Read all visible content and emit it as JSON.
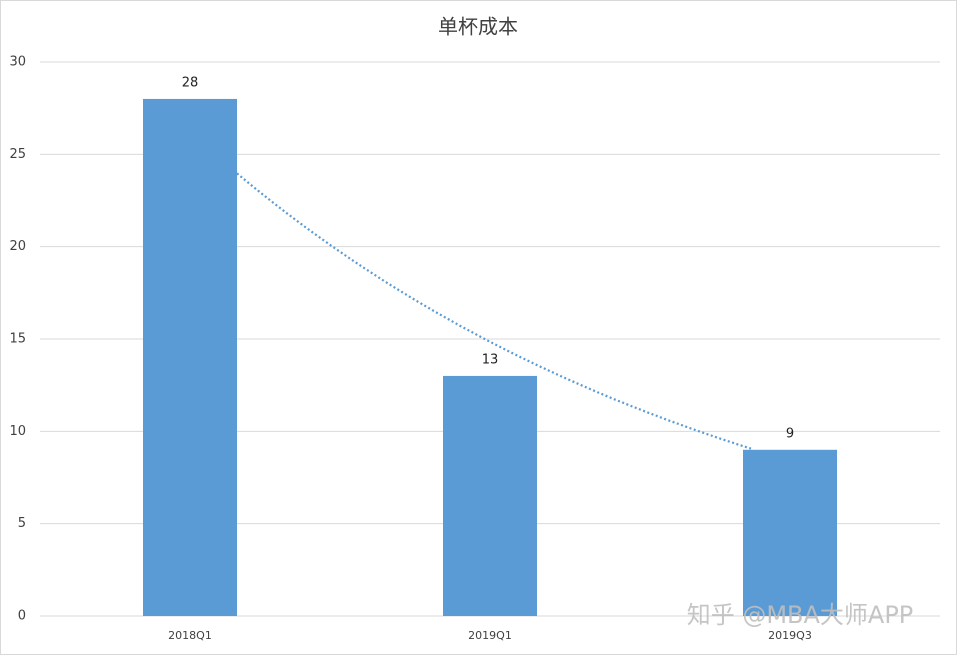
{
  "chart_data": {
    "type": "bar",
    "title": "单杯成本",
    "categories": [
      "2018Q1",
      "2019Q1",
      "2019Q3"
    ],
    "values": [
      28,
      13,
      9
    ],
    "color": "#5b9bd5",
    "ylim": [
      0,
      30
    ],
    "yticks": [
      0,
      5,
      10,
      15,
      20,
      25,
      30
    ],
    "grid": true,
    "trendline": "exponential",
    "trendline_color": "#5b9bd5",
    "watermark": "知乎 @MBA大师APP"
  }
}
